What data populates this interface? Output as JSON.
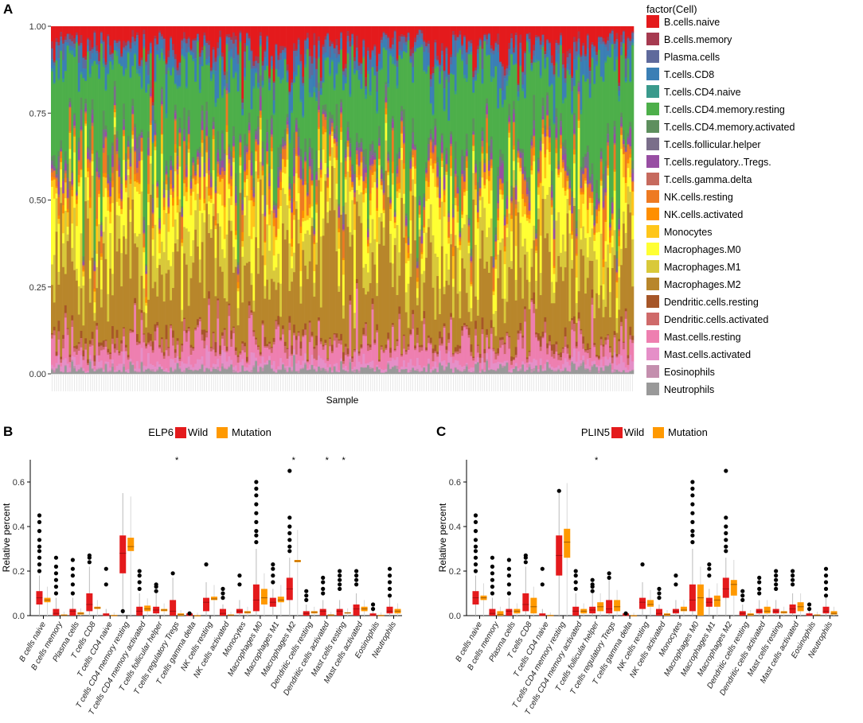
{
  "chart_data": [
    {
      "panel": "A",
      "type": "bar",
      "stacked": true,
      "xlabel": "Sample",
      "ylabel": "",
      "ylim": [
        0,
        1
      ],
      "yticks": [
        "0.00",
        "0.25",
        "0.50",
        "0.75",
        "1.00"
      ],
      "sample_count": 260,
      "legend_title": "factor(Cell)",
      "legend_position": "right",
      "series": [
        {
          "name": "B.cells.naive",
          "color": "#E41A1C",
          "mean": 0.055
        },
        {
          "name": "B.cells.memory",
          "color": "#A63A50",
          "mean": 0.01
        },
        {
          "name": "Plasma.cells",
          "color": "#5F6A9C",
          "mean": 0.02
        },
        {
          "name": "T.cells.CD8",
          "color": "#3B7FB5",
          "mean": 0.04
        },
        {
          "name": "T.cells.CD4.naive",
          "color": "#3A9A8C",
          "mean": 0.005
        },
        {
          "name": "T.cells.CD4.memory.resting",
          "color": "#4DAF4A",
          "mean": 0.26
        },
        {
          "name": "T.cells.CD4.memory.activated",
          "color": "#5E8F5E",
          "mean": 0.02
        },
        {
          "name": "T.cells.follicular.helper",
          "color": "#7A6E8A",
          "mean": 0.02
        },
        {
          "name": "T.cells.regulatory..Tregs.",
          "color": "#984EA3",
          "mean": 0.015
        },
        {
          "name": "T.cells.gamma.delta",
          "color": "#C66A5E",
          "mean": 0.005
        },
        {
          "name": "NK.cells.resting",
          "color": "#EE7A22",
          "mean": 0.035
        },
        {
          "name": "NK.cells.activated",
          "color": "#FF8F00",
          "mean": 0.01
        },
        {
          "name": "Monocytes",
          "color": "#FFC61A",
          "mean": 0.035
        },
        {
          "name": "Macrophages.M0",
          "color": "#FFFF33",
          "mean": 0.09
        },
        {
          "name": "Macrophages.M1",
          "color": "#D9C93A",
          "mean": 0.08
        },
        {
          "name": "Macrophages.M2",
          "color": "#B8862B",
          "mean": 0.22
        },
        {
          "name": "Dendritic.cells.resting",
          "color": "#A65628",
          "mean": 0.01
        },
        {
          "name": "Dendritic.cells.activated",
          "color": "#CF6A6A",
          "mean": 0.015
        },
        {
          "name": "Mast.cells.resting",
          "color": "#EE7FB0",
          "mean": 0.05
        },
        {
          "name": "Mast.cells.activated",
          "color": "#E58FC8",
          "mean": 0.015
        },
        {
          "name": "Eosinophils",
          "color": "#C48FAE",
          "mean": 0.003
        },
        {
          "name": "Neutrophils",
          "color": "#999999",
          "mean": 0.012
        }
      ]
    },
    {
      "panel": "B",
      "type": "box",
      "title": "ELP6",
      "legend": [
        "Wild",
        "Mutation"
      ],
      "legend_colors": [
        "#E41A1C",
        "#FF9900"
      ],
      "ylabel": "Relative percent",
      "ylim": [
        0,
        0.7
      ],
      "yticks": [
        "0.0",
        "0.2",
        "0.4",
        "0.6"
      ],
      "categories": [
        "B cells naive",
        "B cells memory",
        "Plasma cells",
        "T cells CD8",
        "T cells CD4 naive",
        "T cells CD4 memory resting",
        "T cells CD4 memory activated",
        "T cells follicular helper",
        "T cells regulatory  Tregs",
        "T cells gamma delta",
        "NK cells resting",
        "NK cells activated",
        "Monocytes",
        "Macrophages M0",
        "Macrophages M1",
        "Macrophages M2",
        "Dendritic cells resting",
        "Dendritic cells activated",
        "Mast cells resting",
        "Mast cells activated",
        "Eosinophils",
        "Neutrophils"
      ],
      "wild_q1": [
        0.05,
        0,
        0,
        0.02,
        0,
        0.19,
        0,
        0.01,
        0,
        0,
        0.02,
        0,
        0.01,
        0.02,
        0.04,
        0.07,
        0,
        0,
        0,
        0,
        0,
        0.01
      ],
      "wild_median": [
        0.08,
        0.01,
        0.02,
        0.05,
        0,
        0.28,
        0.02,
        0.025,
        0.02,
        0,
        0.06,
        0.01,
        0.02,
        0.07,
        0.06,
        0.12,
        0.01,
        0.02,
        0.02,
        0.03,
        0,
        0.02
      ],
      "wild_q3": [
        0.11,
        0.03,
        0.03,
        0.1,
        0.01,
        0.36,
        0.04,
        0.04,
        0.07,
        0.01,
        0.08,
        0.03,
        0.03,
        0.14,
        0.08,
        0.17,
        0.02,
        0.03,
        0.03,
        0.05,
        0.01,
        0.04
      ],
      "wild_max": [
        0.18,
        0.08,
        0.08,
        0.22,
        0.03,
        0.55,
        0.1,
        0.1,
        0.17,
        0.02,
        0.15,
        0.05,
        0.07,
        0.3,
        0.12,
        0.26,
        0.05,
        0.07,
        0.07,
        0.1,
        0.02,
        0.08
      ],
      "wild_outliers": [
        [
          0.2,
          0.23,
          0.26,
          0.29,
          0.31,
          0.34,
          0.38,
          0.42,
          0.45
        ],
        [
          0.1,
          0.13,
          0.16,
          0.19,
          0.22,
          0.26
        ],
        [
          0.1,
          0.14,
          0.18,
          0.21,
          0.25
        ],
        [
          0.24,
          0.26,
          0.27
        ],
        [
          0.14,
          0.21
        ],
        [
          0.02
        ],
        [
          0.12,
          0.15,
          0.18,
          0.2
        ],
        [
          0.11,
          0.13,
          0.14
        ],
        [
          0.19
        ],
        [
          0.01
        ],
        [
          0.23
        ],
        [
          0.08,
          0.1,
          0.12
        ],
        [
          0.14,
          0.18
        ],
        [
          0.33,
          0.36,
          0.38,
          0.42,
          0.46,
          0.5,
          0.54,
          0.57,
          0.6
        ],
        [
          0.15,
          0.18,
          0.21,
          0.23
        ],
        [
          0.29,
          0.31,
          0.34,
          0.37,
          0.4,
          0.44,
          0.65
        ],
        [
          0.07,
          0.09,
          0.11
        ],
        [
          0.1,
          0.12,
          0.15,
          0.17
        ],
        [
          0.12,
          0.14,
          0.16,
          0.18,
          0.2
        ],
        [
          0.14,
          0.16,
          0.18,
          0.2
        ],
        [
          0.03,
          0.05
        ],
        [
          0.09,
          0.12,
          0.15,
          0.18,
          0.21
        ]
      ],
      "mut_q1": [
        0.06,
        0,
        0.005,
        0.03,
        0,
        0.29,
        0.02,
        0.02,
        0,
        0,
        0.07,
        0,
        0.01,
        0.05,
        0.06,
        0.24,
        0.01,
        0,
        0.01,
        0.02,
        0,
        0.01
      ],
      "mut_median": [
        0.07,
        0.002,
        0.01,
        0.035,
        0,
        0.31,
        0.03,
        0.025,
        0.005,
        0,
        0.075,
        0.002,
        0.015,
        0.08,
        0.07,
        0.245,
        0.015,
        0.003,
        0.012,
        0.03,
        0,
        0.02
      ],
      "mut_q3": [
        0.08,
        0.005,
        0.015,
        0.04,
        0.003,
        0.35,
        0.045,
        0.03,
        0.01,
        0.002,
        0.085,
        0.005,
        0.02,
        0.12,
        0.085,
        0.25,
        0.02,
        0.005,
        0.015,
        0.04,
        0.003,
        0.03
      ],
      "sig_marks": [
        8,
        15,
        17,
        18
      ]
    },
    {
      "panel": "C",
      "type": "box",
      "title": "PLIN5",
      "legend": [
        "Wild",
        "Mutation"
      ],
      "legend_colors": [
        "#E41A1C",
        "#FF9900"
      ],
      "ylabel": "Relative percent",
      "ylim": [
        0,
        0.7
      ],
      "yticks": [
        "0.0",
        "0.2",
        "0.4",
        "0.6"
      ],
      "categories": [
        "B cells naive",
        "B cells memory",
        "Plasma cells",
        "T cells CD8",
        "T cells CD4 naive",
        "T cells CD4 memory resting",
        "T cells CD4 memory activated",
        "T cells follicular helper",
        "T cells regulatory  Tregs",
        "T cells gamma delta",
        "NK cells resting",
        "NK cells activated",
        "Monocytes",
        "Macrophages M0",
        "Macrophages M1",
        "Macrophages M2",
        "Dendritic cells resting",
        "Dendritic cells activated",
        "Mast cells resting",
        "Mast cells activated",
        "Eosinophils",
        "Neutrophils"
      ],
      "wild_q1": [
        0.05,
        0,
        0,
        0.02,
        0,
        0.18,
        0,
        0.01,
        0.01,
        0,
        0.03,
        0,
        0.01,
        0.02,
        0.04,
        0.08,
        0,
        0.01,
        0.01,
        0.01,
        0,
        0.01
      ],
      "wild_median": [
        0.08,
        0.01,
        0.02,
        0.05,
        0,
        0.27,
        0.02,
        0.025,
        0.03,
        0,
        0.06,
        0.01,
        0.02,
        0.07,
        0.06,
        0.12,
        0.01,
        0.02,
        0.02,
        0.03,
        0,
        0.02
      ],
      "wild_q3": [
        0.11,
        0.03,
        0.03,
        0.1,
        0.01,
        0.36,
        0.04,
        0.04,
        0.07,
        0.01,
        0.08,
        0.03,
        0.03,
        0.14,
        0.08,
        0.17,
        0.02,
        0.03,
        0.03,
        0.05,
        0.01,
        0.04
      ],
      "wild_max": [
        0.18,
        0.08,
        0.08,
        0.22,
        0.03,
        0.55,
        0.1,
        0.1,
        0.17,
        0.02,
        0.15,
        0.05,
        0.07,
        0.3,
        0.12,
        0.26,
        0.05,
        0.07,
        0.07,
        0.1,
        0.02,
        0.08
      ],
      "wild_outliers": [
        [
          0.2,
          0.23,
          0.26,
          0.29,
          0.31,
          0.34,
          0.38,
          0.42,
          0.45
        ],
        [
          0.1,
          0.13,
          0.16,
          0.19,
          0.22,
          0.26
        ],
        [
          0.1,
          0.14,
          0.18,
          0.21,
          0.25
        ],
        [
          0.24,
          0.26,
          0.27
        ],
        [
          0.14,
          0.21
        ],
        [
          0.56
        ],
        [
          0.12,
          0.15,
          0.18,
          0.2
        ],
        [
          0.11,
          0.13,
          0.14,
          0.16
        ],
        [
          0.17,
          0.19
        ],
        [
          0.01
        ],
        [
          0.23
        ],
        [
          0.08,
          0.1,
          0.12
        ],
        [
          0.14,
          0.18
        ],
        [
          0.33,
          0.36,
          0.38,
          0.42,
          0.46,
          0.5,
          0.54,
          0.57,
          0.6
        ],
        [
          0.18,
          0.21,
          0.23
        ],
        [
          0.29,
          0.31,
          0.34,
          0.37,
          0.4,
          0.44,
          0.65
        ],
        [
          0.07,
          0.09,
          0.11
        ],
        [
          0.1,
          0.12,
          0.15,
          0.17
        ],
        [
          0.12,
          0.14,
          0.16,
          0.18,
          0.2
        ],
        [
          0.14,
          0.16,
          0.18,
          0.2
        ],
        [
          0.03,
          0.05
        ],
        [
          0.09,
          0.12,
          0.15,
          0.18,
          0.21
        ]
      ],
      "mut_q1": [
        0.07,
        0,
        0.01,
        0.01,
        0,
        0.26,
        0.01,
        0.02,
        0.02,
        0,
        0.04,
        0,
        0.02,
        0,
        0.04,
        0.09,
        0,
        0.01,
        0.01,
        0.02,
        0,
        0.005
      ],
      "mut_median": [
        0.08,
        0.005,
        0.02,
        0.04,
        0,
        0.33,
        0.02,
        0.04,
        0.04,
        0,
        0.05,
        0.005,
        0.025,
        0.08,
        0.07,
        0.14,
        0.005,
        0.02,
        0.015,
        0.04,
        0.002,
        0.01
      ],
      "mut_q3": [
        0.09,
        0.02,
        0.03,
        0.08,
        0.003,
        0.39,
        0.03,
        0.06,
        0.07,
        0.002,
        0.07,
        0.01,
        0.04,
        0.14,
        0.09,
        0.16,
        0.01,
        0.04,
        0.02,
        0.06,
        0.005,
        0.02
      ],
      "sig_marks": [
        7
      ]
    }
  ],
  "labels": {
    "panel_a": "A",
    "panel_b": "B",
    "panel_c": "C",
    "sig_symbol": "*"
  }
}
